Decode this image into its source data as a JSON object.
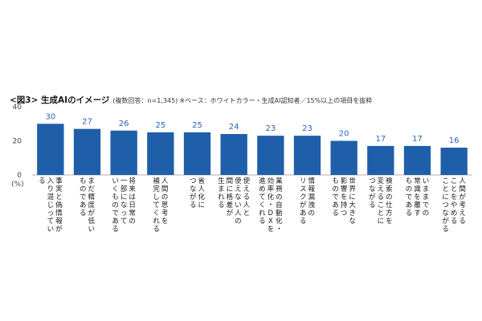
{
  "figure": {
    "title": "<図3> 生成AIのイメージ",
    "subtitle": "(複数回答：n=1,345)",
    "note": "※ベース：ホワイトカラー・生成AI認知者／15%以上の項目を抜粋"
  },
  "chart_data": {
    "type": "bar",
    "ylabel": "(%)",
    "ylim": [
      0,
      40
    ],
    "yticks": [
      0,
      20,
      40
    ],
    "bar_color": "#1f5faa",
    "value_color": "#2b64b3",
    "categories": [
      "事実と偽情報が入り混じっている",
      "まだ精度が低いものである",
      "将来は日常の一部になっていくものである",
      "人間の思考を補完してくれる",
      "省人化につながる",
      "使える人と使えない人の間に格差が生まれる",
      "業務の自動化・効率化・DXを進めてくれる",
      "情報漏洩のリスクがある",
      "世界に大きな影響を持つものである",
      "検索の仕方を変えることにつながる",
      "いままでの常識を覆すものである",
      "人間が考えることをやめることにつながる"
    ],
    "values": [
      30,
      27,
      26,
      25,
      25,
      24,
      23,
      23,
      20,
      17,
      17,
      16
    ],
    "category_lines": [
      [
        "事実と偽情報が",
        "入り混じってい",
        "る"
      ],
      [
        "まだ精度が低い",
        "ものである"
      ],
      [
        "将来は日常の",
        "一部になって",
        "いくものである"
      ],
      [
        "人間の思考を",
        "補完してくれる"
      ],
      [
        "省人化に",
        "つながる"
      ],
      [
        "使える人と",
        "使えない人の",
        "間に格差が",
        "生まれる"
      ],
      [
        "業務の自動化・",
        "効率化・DXを",
        "進めてくれる"
      ],
      [
        "情報漏洩の",
        "リスクがある"
      ],
      [
        "世界に大きな",
        "影響を持つ",
        "ものである"
      ],
      [
        "検索の仕方を",
        "変えることに",
        "つながる"
      ],
      [
        "いままでの",
        "常識を覆す",
        "ものである"
      ],
      [
        "人間が考える",
        "ことをやめる",
        "ことにつながる"
      ]
    ]
  }
}
